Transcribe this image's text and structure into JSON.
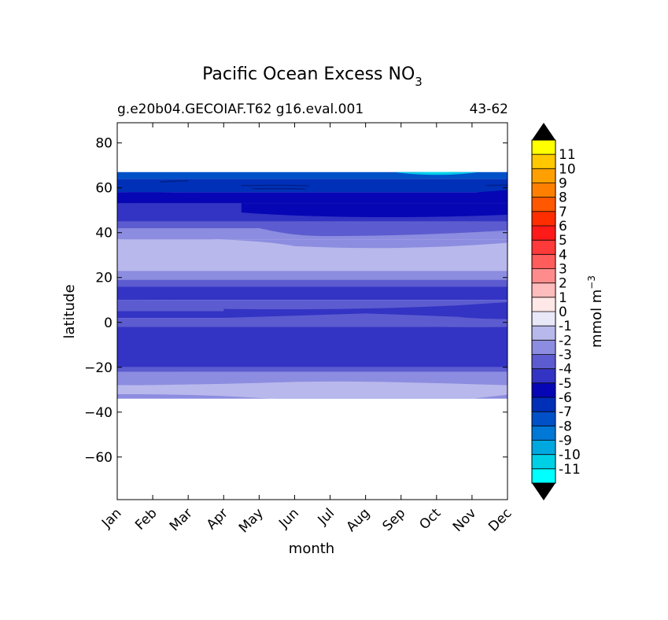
{
  "chart_data": {
    "type": "contourf",
    "title": "Pacific Ocean Excess NO",
    "title_subscript": "3",
    "subtitle_left": "g.e20b04.GECOIAF.T62 g16.eval.001",
    "subtitle_right": "43-62",
    "xlabel": "month",
    "ylabel": "latitude",
    "x_tick_labels": [
      "Jan",
      "Feb",
      "Mar",
      "Apr",
      "May",
      "Jun",
      "Jul",
      "Aug",
      "Sep",
      "Oct",
      "Nov",
      "Dec"
    ],
    "y_ticks": [
      80,
      60,
      40,
      20,
      0,
      -20,
      -40,
      -60
    ],
    "y_tick_labels": [
      "80",
      "60",
      "40",
      "20",
      "0",
      "−20",
      "−40",
      "−60"
    ],
    "ylim": [
      -79,
      89
    ],
    "data_lat_range": [
      -34,
      67
    ],
    "colorbar": {
      "label": "mmol m",
      "label_superscript": "−3",
      "tick_labels": [
        "11",
        "10",
        "9",
        "8",
        "7",
        "6",
        "5",
        "4",
        "3",
        "2",
        "1",
        "0",
        "-1",
        "-2",
        "-3",
        "-4",
        "-5",
        "-6",
        "-7",
        "-8",
        "-9",
        "-10",
        "-11"
      ],
      "levels": [
        -12,
        -11,
        -10,
        -9,
        -8,
        -7,
        -6,
        -5,
        -4,
        -3,
        -2,
        -1,
        0,
        1,
        2,
        3,
        4,
        5,
        6,
        7,
        8,
        9,
        10,
        11,
        12
      ],
      "colors": [
        "#00ffff",
        "#00d0e6",
        "#00a8e0",
        "#0078d6",
        "#0050c8",
        "#0030b8",
        "#0606b4",
        "#3333c4",
        "#5c5cd0",
        "#8c8ce0",
        "#b8b8ec",
        "#e8e8f8",
        "#ffe8e8",
        "#ffbcbc",
        "#ff8c8c",
        "#ff5c5c",
        "#ff3a3a",
        "#ff1a1a",
        "#ff2e00",
        "#ff5800",
        "#ff8000",
        "#ffa000",
        "#ffc800",
        "#ffff00"
      ],
      "extend_color": "#000000"
    },
    "bands": [
      {
        "from": 64,
        "to": 67,
        "level": -8,
        "color": "#0050c8"
      },
      {
        "from": 58,
        "to": 64,
        "level": -7,
        "color": "#0030b8"
      },
      {
        "from": 53,
        "to": 58,
        "level": -6,
        "color": "#0606b4"
      },
      {
        "from": 45,
        "to": 53,
        "level": -5,
        "color": "#3333c4"
      },
      {
        "from": 42,
        "to": 45,
        "level": -4,
        "color": "#5c5cd0"
      },
      {
        "from": 37,
        "to": 42,
        "level": -3,
        "color": "#8c8ce0"
      },
      {
        "from": 23,
        "to": 37,
        "level": -2,
        "color": "#b8b8ec"
      },
      {
        "from": 19,
        "to": 23,
        "level": -3,
        "color": "#8c8ce0"
      },
      {
        "from": 16,
        "to": 19,
        "level": -4,
        "color": "#5c5cd0"
      },
      {
        "from": 10,
        "to": 16,
        "level": -5,
        "color": "#3333c4"
      },
      {
        "from": 5,
        "to": 10,
        "level": -4,
        "color": "#5c5cd0"
      },
      {
        "from": 2,
        "to": 5,
        "level": -5,
        "color": "#3333c4"
      },
      {
        "from": -2,
        "to": 2,
        "level": -4,
        "color": "#5c5cd0"
      },
      {
        "from": -20,
        "to": -2,
        "level": -5,
        "color": "#3333c4"
      },
      {
        "from": -22,
        "to": -20,
        "level": -4,
        "color": "#5c5cd0"
      },
      {
        "from": -28,
        "to": -22,
        "level": -3,
        "color": "#8c8ce0"
      },
      {
        "from": -32,
        "to": -28,
        "level": -2,
        "color": "#b8b8ec"
      },
      {
        "from": -34,
        "to": -32,
        "level": -3,
        "color": "#8c8ce0"
      }
    ]
  }
}
